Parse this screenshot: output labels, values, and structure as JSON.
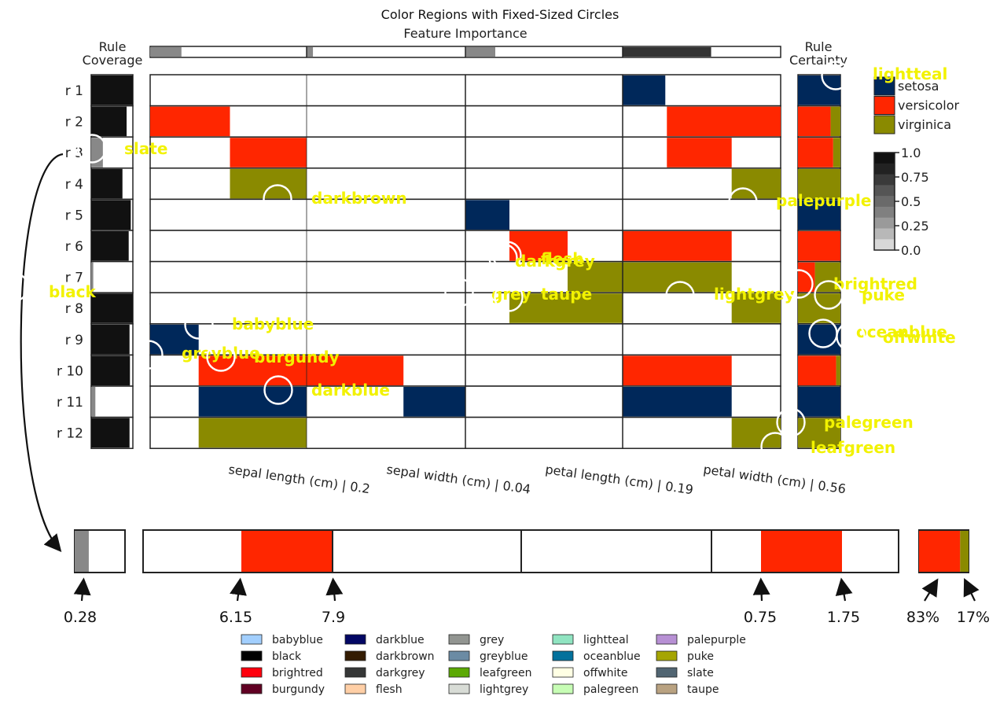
{
  "colors": {
    "setosa": "#00285a",
    "versicolor": "#ff2600",
    "virginica": "#8a8a00",
    "black": "#111111",
    "grey": "#888888",
    "darkgrey": "#333333"
  },
  "chart_data": {
    "type": "heatmap",
    "title": "Color Regions with Fixed-Sized Circles",
    "subtitle": "Feature Importance",
    "coverage_label": "Rule\nCoverage",
    "certainty_label": "Rule\nCertainty",
    "rows": [
      "r 1",
      "r 2",
      "r 3",
      "r 4",
      "r 5",
      "r 6",
      "r 7",
      "r 8",
      "r 9",
      "r 10",
      "r 11",
      "r 12"
    ],
    "features": [
      "sepal length (cm) | 0.2",
      "sepal width (cm) | 0.04",
      "petal length (cm) | 0.19",
      "petal width (cm) | 0.56"
    ],
    "feature_importance": [
      0.2,
      0.04,
      0.19,
      0.56
    ],
    "classes": [
      "setosa",
      "versicolor",
      "virginica"
    ],
    "colorbar_ticks": [
      "1.0",
      "0.75",
      "0.5",
      "0.25",
      "0.0"
    ],
    "coverage": [
      1.0,
      0.85,
      0.28,
      0.75,
      0.95,
      0.9,
      0.05,
      1.0,
      0.92,
      0.93,
      0.1,
      0.92
    ],
    "cells": [
      {
        "row": 0,
        "feature": 3,
        "start": 0.0,
        "end": 0.27,
        "cls": "setosa"
      },
      {
        "row": 1,
        "feature": 0,
        "start": 0.0,
        "end": 0.51,
        "cls": "versicolor"
      },
      {
        "row": 1,
        "feature": 3,
        "start": 0.28,
        "end": 1.0,
        "cls": "versicolor"
      },
      {
        "row": 2,
        "feature": 0,
        "start": 0.51,
        "end": 1.0,
        "cls": "versicolor"
      },
      {
        "row": 2,
        "feature": 3,
        "start": 0.28,
        "end": 0.69,
        "cls": "versicolor"
      },
      {
        "row": 3,
        "feature": 0,
        "start": 0.51,
        "end": 1.0,
        "cls": "virginica"
      },
      {
        "row": 3,
        "feature": 3,
        "start": 0.69,
        "end": 1.0,
        "cls": "virginica"
      },
      {
        "row": 4,
        "feature": 2,
        "start": 0.0,
        "end": 0.28,
        "cls": "setosa"
      },
      {
        "row": 5,
        "feature": 2,
        "start": 0.28,
        "end": 0.65,
        "cls": "versicolor"
      },
      {
        "row": 5,
        "feature": 3,
        "start": 0.0,
        "end": 0.69,
        "cls": "versicolor"
      },
      {
        "row": 6,
        "feature": 2,
        "start": 0.65,
        "end": 1.0,
        "cls": "virginica"
      },
      {
        "row": 6,
        "feature": 3,
        "start": 0.0,
        "end": 0.69,
        "cls": "virginica"
      },
      {
        "row": 7,
        "feature": 2,
        "start": 0.28,
        "end": 1.0,
        "cls": "virginica"
      },
      {
        "row": 7,
        "feature": 3,
        "start": 0.69,
        "end": 1.0,
        "cls": "virginica"
      },
      {
        "row": 8,
        "feature": 0,
        "start": 0.0,
        "end": 0.31,
        "cls": "setosa"
      },
      {
        "row": 9,
        "feature": 0,
        "start": 0.31,
        "end": 1.0,
        "cls": "versicolor"
      },
      {
        "row": 9,
        "feature": 1,
        "start": 0.0,
        "end": 0.61,
        "cls": "versicolor"
      },
      {
        "row": 9,
        "feature": 3,
        "start": 0.0,
        "end": 0.69,
        "cls": "versicolor"
      },
      {
        "row": 10,
        "feature": 0,
        "start": 0.31,
        "end": 1.0,
        "cls": "setosa"
      },
      {
        "row": 10,
        "feature": 1,
        "start": 0.61,
        "end": 1.0,
        "cls": "setosa"
      },
      {
        "row": 10,
        "feature": 3,
        "start": 0.0,
        "end": 0.69,
        "cls": "setosa"
      },
      {
        "row": 11,
        "feature": 0,
        "start": 0.31,
        "end": 1.0,
        "cls": "virginica"
      },
      {
        "row": 11,
        "feature": 3,
        "start": 0.69,
        "end": 1.0,
        "cls": "virginica"
      }
    ],
    "certainty": [
      {
        "row": 0,
        "parts": [
          [
            "setosa",
            1.0
          ]
        ]
      },
      {
        "row": 1,
        "parts": [
          [
            "versicolor",
            0.77
          ],
          [
            "virginica",
            0.23
          ]
        ]
      },
      {
        "row": 2,
        "parts": [
          [
            "versicolor",
            0.83
          ],
          [
            "virginica",
            0.17
          ]
        ]
      },
      {
        "row": 3,
        "parts": [
          [
            "virginica",
            1.0
          ]
        ]
      },
      {
        "row": 4,
        "parts": [
          [
            "setosa",
            1.0
          ]
        ]
      },
      {
        "row": 5,
        "parts": [
          [
            "versicolor",
            1.0
          ]
        ]
      },
      {
        "row": 6,
        "parts": [
          [
            "versicolor",
            0.4
          ],
          [
            "virginica",
            0.6
          ]
        ]
      },
      {
        "row": 7,
        "parts": [
          [
            "virginica",
            1.0
          ]
        ]
      },
      {
        "row": 8,
        "parts": [
          [
            "setosa",
            1.0
          ]
        ]
      },
      {
        "row": 9,
        "parts": [
          [
            "versicolor",
            0.9
          ],
          [
            "virginica",
            0.1
          ]
        ]
      },
      {
        "row": 10,
        "parts": [
          [
            "setosa",
            1.0
          ]
        ]
      },
      {
        "row": 11,
        "parts": [
          [
            "virginica",
            1.0
          ]
        ]
      }
    ],
    "highlight": {
      "coverage": 0.28,
      "sepal_length_range": [
        6.15,
        7.9
      ],
      "petal_width_range": [
        0.75,
        1.75
      ],
      "certainty": [
        0.83,
        0.17
      ],
      "annotations": [
        "0.28",
        "6.15",
        "7.9",
        "0.75",
        "1.75",
        "83%",
        "17%"
      ]
    },
    "circle_labels": [
      "lightteal",
      "slate",
      "darkbrown",
      "palepurple",
      "flesh",
      "darkgrey",
      "black",
      "grey",
      "taupe",
      "lightgrey",
      "brightred",
      "puke",
      "babyblue",
      "oceanblue",
      "offwhite",
      "greyblue",
      "burgundy",
      "darkblue",
      "palegreen",
      "leafgreen"
    ],
    "color_legend": [
      {
        "name": "babyblue",
        "color": "#a2cffe"
      },
      {
        "name": "black",
        "color": "#000000"
      },
      {
        "name": "brightred",
        "color": "#ff000d"
      },
      {
        "name": "burgundy",
        "color": "#610023"
      },
      {
        "name": "darkblue",
        "color": "#030764"
      },
      {
        "name": "darkbrown",
        "color": "#341c02"
      },
      {
        "name": "darkgrey",
        "color": "#363737"
      },
      {
        "name": "flesh",
        "color": "#ffcfa6"
      },
      {
        "name": "grey",
        "color": "#929591"
      },
      {
        "name": "greyblue",
        "color": "#6b8ba4"
      },
      {
        "name": "leafgreen",
        "color": "#5ca904"
      },
      {
        "name": "lightgrey",
        "color": "#d8dcd6"
      },
      {
        "name": "lightteal",
        "color": "#90e4c1"
      },
      {
        "name": "oceanblue",
        "color": "#03719c"
      },
      {
        "name": "offwhite",
        "color": "#ffffe4"
      },
      {
        "name": "palegreen",
        "color": "#c7fdb5"
      },
      {
        "name": "palepurple",
        "color": "#b790d4"
      },
      {
        "name": "puke",
        "color": "#a5a502"
      },
      {
        "name": "slate",
        "color": "#516572"
      },
      {
        "name": "taupe",
        "color": "#b9a281"
      }
    ]
  }
}
